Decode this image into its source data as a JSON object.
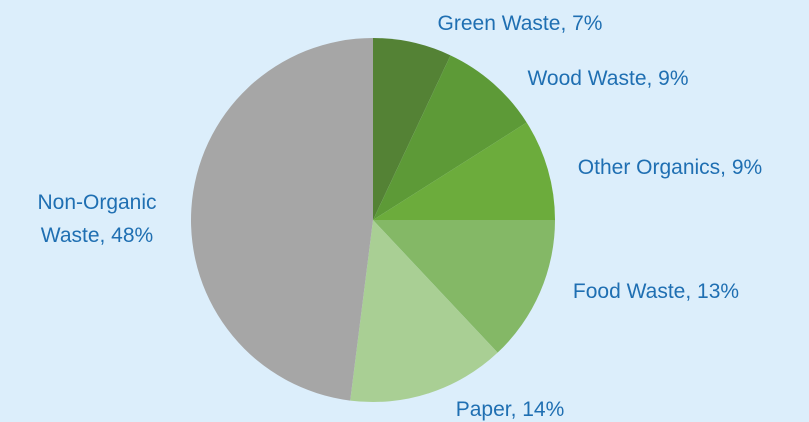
{
  "chart_data": {
    "type": "pie",
    "title": "",
    "start_angle_deg": 0,
    "direction": "clockwise",
    "slices": [
      {
        "label": [
          "Green Waste, 7%"
        ],
        "value": 7,
        "color": "#548235"
      },
      {
        "label": [
          "Wood Waste, 9%"
        ],
        "value": 9,
        "color": "#5d9a37"
      },
      {
        "label": [
          "Other Organics, 9%"
        ],
        "value": 9,
        "color": "#6cac3c"
      },
      {
        "label": [
          "Food Waste, 13%"
        ],
        "value": 13,
        "color": "#84b866"
      },
      {
        "label": [
          "Paper, 14%"
        ],
        "value": 14,
        "color": "#a9cf94"
      },
      {
        "label": [
          "Non-Organic",
          "Waste, 48%"
        ],
        "value": 48,
        "color": "#a6a6a6"
      }
    ]
  }
}
